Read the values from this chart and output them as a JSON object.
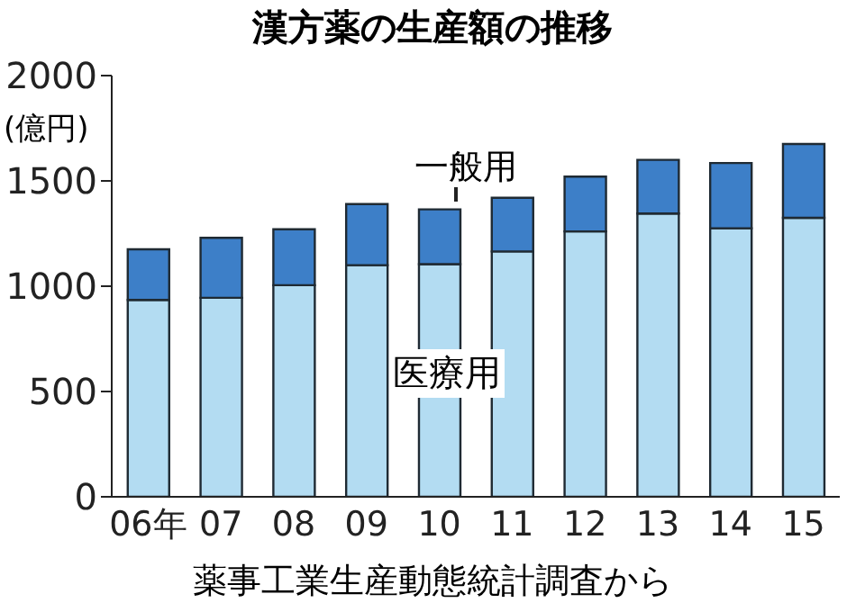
{
  "chart_data": {
    "type": "bar",
    "title": "漢方薬の生産額の推移",
    "stacked": true,
    "categories": [
      "06年",
      "07",
      "08",
      "09",
      "10",
      "11",
      "12",
      "13",
      "14",
      "15"
    ],
    "series": [
      {
        "name": "医療用",
        "color": "#b3dcf2",
        "values": [
          935,
          945,
          1005,
          1100,
          1105,
          1165,
          1260,
          1345,
          1275,
          1325
        ]
      },
      {
        "name": "一般用",
        "color": "#3d7fc8",
        "values": [
          240,
          285,
          265,
          290,
          260,
          255,
          260,
          255,
          310,
          350
        ]
      }
    ],
    "ylim": [
      0,
      2000
    ],
    "yticks": [
      0,
      500,
      1000,
      1500,
      2000
    ],
    "annotations": [
      "(億円)",
      "薬事工業生産動態統計調査から"
    ]
  }
}
